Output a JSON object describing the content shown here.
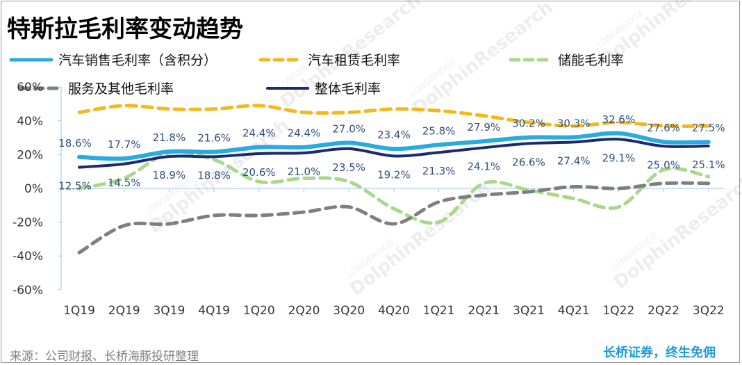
{
  "title": "特斯拉毛利率变动趋势",
  "source": "来源：公司财报、长桥海豚投研整理",
  "brand": "长桥证券，终生免佣",
  "watermark": {
    "small": "LONGBRIDGE",
    "large": "DolphinResearch"
  },
  "colors": {
    "auto_sales": "#29aae1",
    "auto_leasing": "#f4b81c",
    "energy_storage": "#a9d88b",
    "services_other": "#7f7f7f",
    "total": "#1c2a70",
    "label_text": "#2f4f7f",
    "axis": "#9dc3e6"
  },
  "chart_data": {
    "type": "line",
    "categories": [
      "1Q19",
      "2Q19",
      "3Q19",
      "4Q19",
      "1Q20",
      "2Q20",
      "3Q20",
      "4Q20",
      "1Q21",
      "2Q21",
      "3Q21",
      "4Q21",
      "1Q22",
      "2Q22",
      "3Q22"
    ],
    "ylim": [
      -60,
      60
    ],
    "yticks": [
      "-60%",
      "-40%",
      "-20%",
      "0%",
      "20%",
      "40%",
      "60%"
    ],
    "grid": false,
    "legend_position": "top",
    "series": [
      {
        "key": "auto_sales",
        "name": "汽车销售毛利率（含积分）",
        "style": "solid",
        "values": [
          18.6,
          17.7,
          21.8,
          21.6,
          24.4,
          24.4,
          27.0,
          23.4,
          25.8,
          27.9,
          30.2,
          30.3,
          32.6,
          27.6,
          27.5
        ],
        "labels": [
          "18.6%",
          "17.7%",
          "21.8%",
          "21.6%",
          "24.4%",
          "24.4%",
          "27.0%",
          "23.4%",
          "25.8%",
          "27.9%",
          "30.2%",
          "30.3%",
          "32.6%",
          "27.6%",
          "27.5%"
        ]
      },
      {
        "key": "auto_leasing",
        "name": "汽车租赁毛利率",
        "style": "dashed",
        "values": [
          45,
          49,
          47,
          47,
          49,
          45,
          45,
          47,
          46,
          43,
          39,
          37,
          39,
          37,
          37
        ]
      },
      {
        "key": "energy_storage",
        "name": "储能毛利率",
        "style": "dashed",
        "values": [
          0,
          6,
          21,
          17,
          4,
          6,
          4,
          -12,
          -20,
          3,
          -1,
          -6,
          -11,
          11,
          7
        ]
      },
      {
        "key": "services_other",
        "name": "服务及其他毛利率",
        "style": "dashed",
        "values": [
          -38,
          -22,
          -21,
          -16,
          -16,
          -14,
          -11,
          -21,
          -8,
          -4,
          -2,
          1,
          0,
          3,
          3
        ]
      },
      {
        "key": "total",
        "name": "整体毛利率",
        "style": "solid",
        "values": [
          12.5,
          14.5,
          18.9,
          18.8,
          20.6,
          21.0,
          23.5,
          19.2,
          21.3,
          24.1,
          26.6,
          27.4,
          29.1,
          25.0,
          25.1
        ],
        "labels": [
          "12.5%",
          "14.5%",
          "18.9%",
          "18.8%",
          "20.6%",
          "21.0%",
          "23.5%",
          "19.2%",
          "21.3%",
          "24.1%",
          "26.6%",
          "27.4%",
          "29.1%",
          "25.0%",
          "25.1%"
        ]
      }
    ]
  }
}
